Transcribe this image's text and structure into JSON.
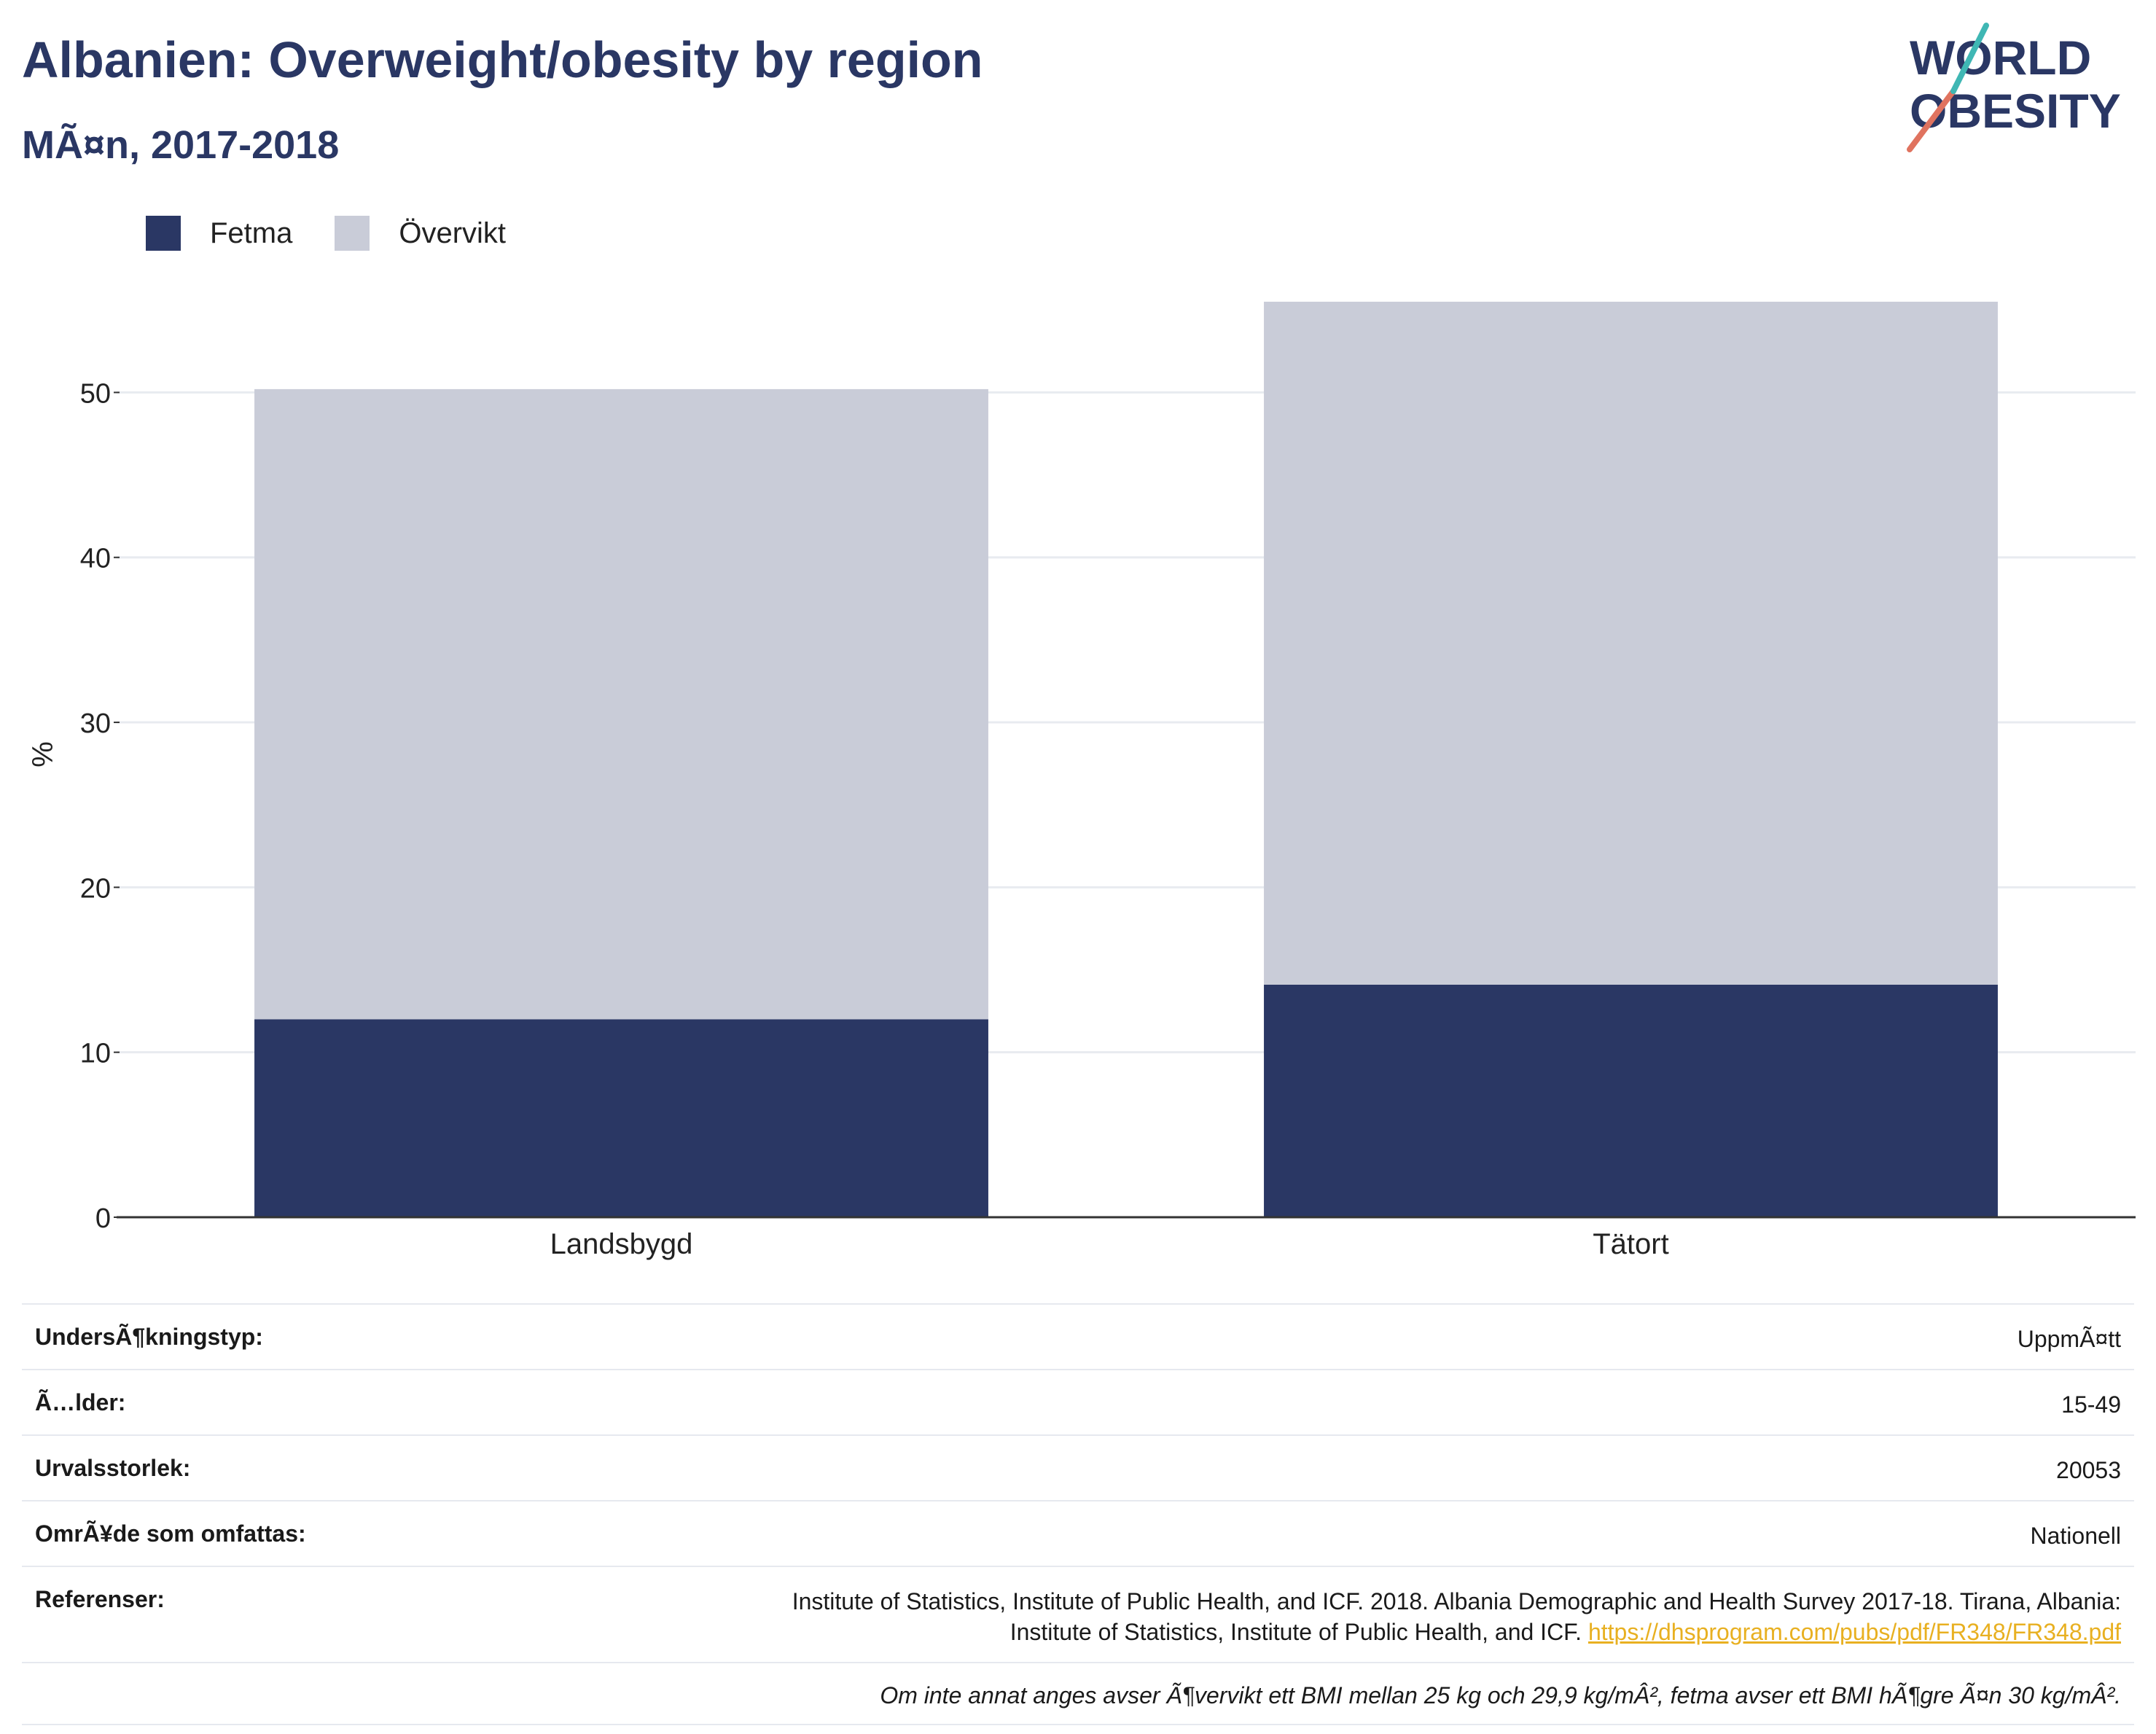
{
  "header": {
    "title": "Albanien: Overweight/obesity by region",
    "subtitle": "MÃ¤n, 2017-2018"
  },
  "logo": {
    "line1": "WORLD",
    "line2": "OBESITY"
  },
  "colors": {
    "fetma": "#2a3764",
    "overvikt": "#c9ccd8",
    "title": "#2a3764",
    "link": "#e8b021"
  },
  "chart_data": {
    "type": "bar",
    "stacked": true,
    "categories": [
      "Landsbygd",
      "Tätort"
    ],
    "series": [
      {
        "name": "Fetma",
        "values": [
          12.0,
          14.1
        ]
      },
      {
        "name": "Övervikt",
        "values": [
          38.2,
          41.4
        ]
      }
    ],
    "ylabel": "%",
    "ylim": [
      0,
      57
    ],
    "yticks": [
      0,
      10,
      20,
      30,
      40,
      50
    ],
    "grid": true,
    "legend": "top-left"
  },
  "info": {
    "survey_type": {
      "label": "UndersÃ¶kningstyp:",
      "value": "UppmÃ¤tt"
    },
    "age": {
      "label": "Ã…lder:",
      "value": "15-49"
    },
    "sample_size": {
      "label": "Urvalsstorlek:",
      "value": "20053"
    },
    "area": {
      "label": "OmrÃ¥de som omfattas:",
      "value": "Nationell"
    },
    "references": {
      "label": "Referenser:",
      "line1": "Institute of Statistics, Institute of Public Health, and ICF. 2018. Albania Demographic and Health Survey 2017-18. Tirana, Albania:",
      "line2": "Institute of Statistics, Institute of Public Health, and ICF. ",
      "link": "https://dhsprogram.com/pubs/pdf/FR348/FR348.pdf"
    },
    "note": "Om inte annat anges avser Ã¶vervikt ett BMI mellan 25 kg och 29,9 kg/mÂ², fetma avser ett BMI hÃ¶gre Ã¤n 30 kg/mÂ²."
  }
}
